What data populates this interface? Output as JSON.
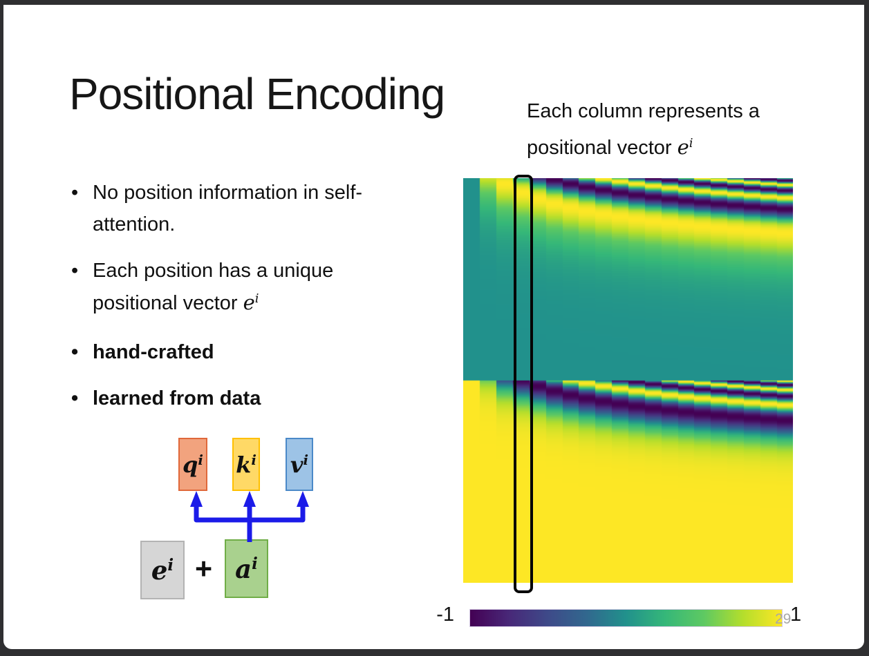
{
  "slide": {
    "title": "Positional Encoding",
    "caption": {
      "line1": "Each column represents a",
      "line2_text": "positional vector ",
      "line2_math_base": "e",
      "line2_math_sup": "i"
    },
    "bullets": [
      {
        "text": "No position information in self-attention."
      },
      {
        "text": "Each position has a unique positional vector ",
        "math_base": "e",
        "math_sup": "i"
      },
      {
        "text": "hand-crafted"
      },
      {
        "text": "learned from data"
      }
    ],
    "diagram": {
      "q": {
        "base": "q",
        "sup": "i",
        "fill": "#f2a37e",
        "border": "#e0683a"
      },
      "k": {
        "base": "k",
        "sup": "i",
        "fill": "#ffd966",
        "border": "#ffc000"
      },
      "v": {
        "base": "v",
        "sup": "i",
        "fill": "#9dc3e6",
        "border": "#4a89c8"
      },
      "e": {
        "base": "e",
        "sup": "i",
        "fill": "#d6d6d6",
        "border": "#b3b3b3"
      },
      "a": {
        "base": "a",
        "sup": "i",
        "fill": "#a9d18e",
        "border": "#70ad47"
      },
      "plus": "+",
      "arrow_color": "#1b1be8"
    },
    "page_number": "29"
  },
  "chart_data": {
    "type": "heatmap",
    "title": "Sinusoidal positional encoding matrix (each column is positional vector e^i)",
    "x_meaning": "position index i, one blocky column per position",
    "y_meaning": "embedding dimension: top half = sin components (high frequency at top), bottom half = cos components",
    "formula_top": "sin(i * 10000^(-t)), t from 0 at top of upper half to 1 at its bottom",
    "formula_bottom": "cos(i * 10000^(-t)), t from 0 at top of lower half to 1 at its bottom",
    "num_positions": 20,
    "value_range": [
      -1,
      1
    ],
    "colormap": "viridis",
    "colormap_stops": [
      "#440154",
      "#482878",
      "#3e4a89",
      "#31688e",
      "#21918c",
      "#35b779",
      "#5ec962",
      "#b4de2c",
      "#fde725"
    ],
    "highlighted_column": 3,
    "colorbar": {
      "min_label": "-1",
      "max_label": "1"
    }
  }
}
